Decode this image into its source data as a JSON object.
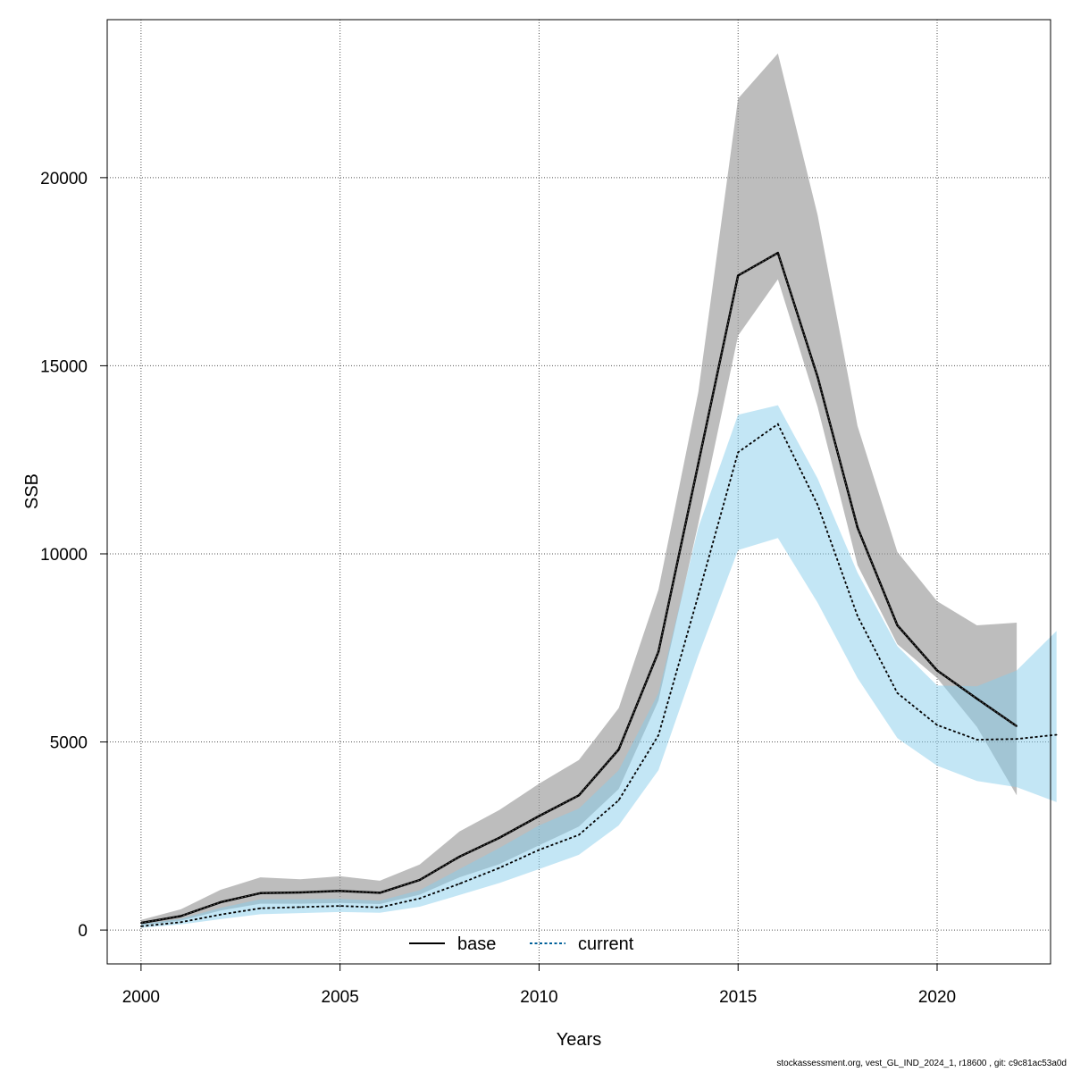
{
  "chart_data": {
    "type": "line",
    "xlabel": "Years",
    "ylabel": "SSB",
    "xlim": [
      1999.15,
      2022.85
    ],
    "ylim": [
      -900,
      24200
    ],
    "xticks": [
      2000,
      2005,
      2010,
      2015,
      2020
    ],
    "yticks": [
      0,
      5000,
      10000,
      15000,
      20000
    ],
    "grid": true,
    "legend_position": "bottom-center",
    "colors": {
      "base_line": "#000000",
      "base_band": "#9a9a9a",
      "current_line": "#000000",
      "current_band": "#87ceeb",
      "legend_current": "#00609a",
      "grid": "#555555",
      "frame": "#000000"
    },
    "series": [
      {
        "name": "base",
        "line_style": "solid",
        "x": [
          2000,
          2001,
          2002,
          2003,
          2004,
          2005,
          2006,
          2007,
          2008,
          2009,
          2010,
          2011,
          2012,
          2013,
          2014,
          2015,
          2016,
          2017,
          2018,
          2019,
          2020,
          2021,
          2022
        ],
        "values": [
          190,
          370,
          740,
          980,
          1000,
          1040,
          990,
          1330,
          1950,
          2450,
          3030,
          3580,
          4800,
          7400,
          12400,
          17400,
          18000,
          14700,
          10700,
          8100,
          6900,
          6150,
          5420
        ],
        "lower": [
          130,
          250,
          520,
          700,
          700,
          720,
          690,
          940,
          1400,
          1750,
          2250,
          2750,
          3750,
          6100,
          10800,
          15800,
          17300,
          13900,
          9700,
          7600,
          6700,
          5400,
          3580
        ],
        "upper": [
          270,
          550,
          1070,
          1400,
          1350,
          1430,
          1310,
          1740,
          2620,
          3190,
          3890,
          4520,
          5900,
          9050,
          14300,
          22100,
          23300,
          19000,
          13400,
          10050,
          8740,
          8100,
          8170
        ]
      },
      {
        "name": "current",
        "line_style": "dotted",
        "x": [
          2000,
          2001,
          2002,
          2003,
          2004,
          2005,
          2006,
          2007,
          2008,
          2009,
          2010,
          2011,
          2012,
          2013,
          2014,
          2015,
          2016,
          2017,
          2018,
          2019,
          2020,
          2021,
          2022,
          2023
        ],
        "values": [
          100,
          210,
          410,
          580,
          610,
          640,
          600,
          840,
          1230,
          1650,
          2130,
          2530,
          3450,
          5180,
          8900,
          12700,
          13450,
          11300,
          8350,
          6300,
          5450,
          5060,
          5080,
          5190
        ],
        "lower": [
          60,
          150,
          290,
          420,
          450,
          480,
          460,
          620,
          930,
          1250,
          1620,
          2000,
          2780,
          4250,
          7300,
          10100,
          10420,
          8700,
          6700,
          5100,
          4370,
          3960,
          3800,
          3400
        ],
        "upper": [
          160,
          300,
          590,
          820,
          820,
          830,
          780,
          1060,
          1620,
          2180,
          2780,
          3230,
          4250,
          6300,
          10700,
          13700,
          13950,
          12000,
          9500,
          7550,
          6500,
          6480,
          6900,
          7950
        ]
      }
    ]
  },
  "legend": {
    "base_label": "base",
    "current_label": "current"
  },
  "footnote": "stockassessment.org, vest_GL_IND_2024_1, r18600 , git: c9c81ac53a0d"
}
